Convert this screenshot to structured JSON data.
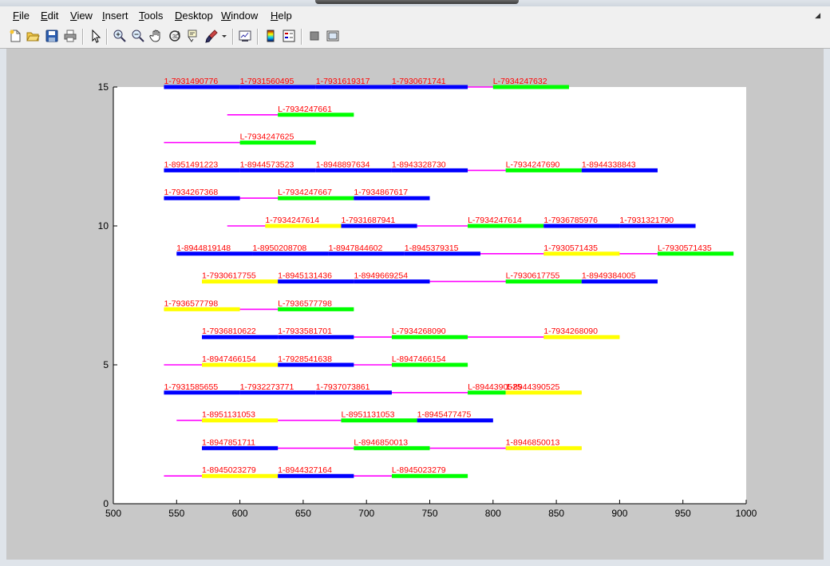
{
  "menu": [
    {
      "pre": "",
      "u": "F",
      "post": "ile"
    },
    {
      "pre": "",
      "u": "E",
      "post": "dit"
    },
    {
      "pre": "",
      "u": "V",
      "post": "iew"
    },
    {
      "pre": "",
      "u": "I",
      "post": "nsert"
    },
    {
      "pre": "",
      "u": "T",
      "post": "ools"
    },
    {
      "pre": "",
      "u": "D",
      "post": "esktop"
    },
    {
      "pre": "",
      "u": "W",
      "post": "indow"
    },
    {
      "pre": "",
      "u": "H",
      "post": "elp"
    }
  ],
  "toolbar_icons": [
    "new-figure-icon",
    "open-file-icon",
    "save-icon",
    "print-icon",
    "select-arrow-icon",
    "zoom-in-icon",
    "zoom-out-icon",
    "pan-hand-icon",
    "rotate-3d-icon",
    "data-cursor-icon",
    "brush-icon",
    "brush-dropdown-icon",
    "link-plot-icon",
    "colorbar-icon",
    "legend-icon",
    "hide-plot-tools-icon",
    "show-plot-tools-icon"
  ],
  "colors": {
    "blue": "#0000ff",
    "green": "#00ff00",
    "yellow": "#ffff00",
    "magenta": "#ff00ff",
    "label": "#ff0000"
  },
  "chart_data": {
    "type": "line",
    "xlim": [
      500,
      1000
    ],
    "ylim": [
      0,
      15
    ],
    "xticks": [
      500,
      550,
      600,
      650,
      700,
      750,
      800,
      850,
      900,
      950,
      1000
    ],
    "yticks": [
      0,
      5,
      10,
      15
    ],
    "rows": [
      {
        "y": 15,
        "line": [
          540,
          860
        ],
        "segments": [
          {
            "x": [
              540,
              600
            ],
            "color": "blue",
            "label": "1-7931490776"
          },
          {
            "x": [
              600,
              660
            ],
            "color": "blue",
            "label": "1-7931560495"
          },
          {
            "x": [
              660,
              720
            ],
            "color": "blue",
            "label": "1-7931619317"
          },
          {
            "x": [
              720,
              780
            ],
            "color": "blue",
            "label": "1-7930671741"
          },
          {
            "x": [
              800,
              860
            ],
            "color": "green",
            "label": "L-7934247632"
          }
        ]
      },
      {
        "y": 14,
        "line": [
          590,
          690
        ],
        "segments": [
          {
            "x": [
              630,
              690
            ],
            "color": "green",
            "label": "L-7934247661"
          }
        ]
      },
      {
        "y": 13,
        "line": [
          540,
          660
        ],
        "segments": [
          {
            "x": [
              600,
              660
            ],
            "color": "green",
            "label": "L-7934247625"
          }
        ]
      },
      {
        "y": 12,
        "line": [
          540,
          930
        ],
        "segments": [
          {
            "x": [
              540,
              600
            ],
            "color": "blue",
            "label": "1-8951491223"
          },
          {
            "x": [
              600,
              660
            ],
            "color": "blue",
            "label": "1-8944573523"
          },
          {
            "x": [
              660,
              720
            ],
            "color": "blue",
            "label": "1-8948897634"
          },
          {
            "x": [
              720,
              780
            ],
            "color": "blue",
            "label": "1-8943328730"
          },
          {
            "x": [
              810,
              870
            ],
            "color": "green",
            "label": "L-7934247690"
          },
          {
            "x": [
              870,
              930
            ],
            "color": "blue",
            "label": "1-8944338843"
          }
        ]
      },
      {
        "y": 11,
        "line": [
          540,
          750
        ],
        "segments": [
          {
            "x": [
              540,
              600
            ],
            "color": "blue",
            "label": "1-7934267368"
          },
          {
            "x": [
              630,
              690
            ],
            "color": "green",
            "label": "L-7934247667"
          },
          {
            "x": [
              690,
              750
            ],
            "color": "blue",
            "label": "1-7934867617"
          }
        ]
      },
      {
        "y": 10,
        "line": [
          590,
          960
        ],
        "segments": [
          {
            "x": [
              620,
              680
            ],
            "color": "yellow",
            "label": "1-7934247614"
          },
          {
            "x": [
              680,
              740
            ],
            "color": "blue",
            "label": "1-7931687941"
          },
          {
            "x": [
              780,
              840
            ],
            "color": "green",
            "label": "L-7934247614"
          },
          {
            "x": [
              840,
              900
            ],
            "color": "blue",
            "label": "1-7936785976"
          },
          {
            "x": [
              900,
              960
            ],
            "color": "blue",
            "label": "1-7931321790"
          }
        ]
      },
      {
        "y": 9,
        "line": [
          550,
          990
        ],
        "segments": [
          {
            "x": [
              550,
              610
            ],
            "color": "blue",
            "label": "1-8944819148"
          },
          {
            "x": [
              610,
              670
            ],
            "color": "blue",
            "label": "1-8950208708"
          },
          {
            "x": [
              670,
              730
            ],
            "color": "blue",
            "label": "1-8947844602"
          },
          {
            "x": [
              730,
              790
            ],
            "color": "blue",
            "label": "1-8945379315"
          },
          {
            "x": [
              840,
              900
            ],
            "color": "yellow",
            "label": "1-7930571435"
          },
          {
            "x": [
              930,
              990
            ],
            "color": "green",
            "label": "L-7930571435"
          }
        ]
      },
      {
        "y": 8,
        "line": [
          570,
          930
        ],
        "segments": [
          {
            "x": [
              570,
              630
            ],
            "color": "yellow",
            "label": "1-7930617755"
          },
          {
            "x": [
              630,
              690
            ],
            "color": "blue",
            "label": "1-8945131436"
          },
          {
            "x": [
              690,
              750
            ],
            "color": "blue",
            "label": "1-8949669254"
          },
          {
            "x": [
              810,
              870
            ],
            "color": "green",
            "label": "L-7930617755"
          },
          {
            "x": [
              870,
              930
            ],
            "color": "blue",
            "label": "1-8949384005"
          }
        ]
      },
      {
        "y": 7,
        "line": [
          540,
          690
        ],
        "segments": [
          {
            "x": [
              540,
              600
            ],
            "color": "yellow",
            "label": "1-7936577798"
          },
          {
            "x": [
              630,
              690
            ],
            "color": "green",
            "label": "L-7936577798"
          }
        ]
      },
      {
        "y": 6,
        "line": [
          570,
          900
        ],
        "segments": [
          {
            "x": [
              570,
              630
            ],
            "color": "blue",
            "label": "1-7936810622"
          },
          {
            "x": [
              630,
              690
            ],
            "color": "blue",
            "label": "1-7933581701"
          },
          {
            "x": [
              720,
              780
            ],
            "color": "green",
            "label": "L-7934268090"
          },
          {
            "x": [
              840,
              900
            ],
            "color": "yellow",
            "label": "1-7934268090"
          }
        ]
      },
      {
        "y": 5,
        "line": [
          540,
          780
        ],
        "segments": [
          {
            "x": [
              570,
              630
            ],
            "color": "yellow",
            "label": "1-8947466154"
          },
          {
            "x": [
              630,
              690
            ],
            "color": "blue",
            "label": "1-7928541638"
          },
          {
            "x": [
              720,
              780
            ],
            "color": "green",
            "label": "L-8947466154"
          }
        ]
      },
      {
        "y": 4,
        "line": [
          540,
          870
        ],
        "segments": [
          {
            "x": [
              540,
              600
            ],
            "color": "blue",
            "label": "1-7931585655"
          },
          {
            "x": [
              600,
              660
            ],
            "color": "blue",
            "label": "1-7932273771"
          },
          {
            "x": [
              660,
              720
            ],
            "color": "blue",
            "label": "1-7937073861"
          },
          {
            "x": [
              780,
              810
            ],
            "color": "green",
            "label": "L-8944390525"
          },
          {
            "x": [
              810,
              870
            ],
            "color": "yellow",
            "label": "1-8944390525"
          }
        ]
      },
      {
        "y": 3,
        "line": [
          550,
          800
        ],
        "segments": [
          {
            "x": [
              570,
              630
            ],
            "color": "yellow",
            "label": "1-8951131053"
          },
          {
            "x": [
              680,
              740
            ],
            "color": "green",
            "label": "L-8951131053"
          },
          {
            "x": [
              740,
              800
            ],
            "color": "blue",
            "label": "1-8945477475"
          }
        ]
      },
      {
        "y": 2,
        "line": [
          570,
          870
        ],
        "segments": [
          {
            "x": [
              570,
              630
            ],
            "color": "blue",
            "label": "1-8947851711"
          },
          {
            "x": [
              690,
              750
            ],
            "color": "green",
            "label": "L-8946850013"
          },
          {
            "x": [
              810,
              870
            ],
            "color": "yellow",
            "label": "1-8946850013"
          }
        ]
      },
      {
        "y": 1,
        "line": [
          540,
          780
        ],
        "segments": [
          {
            "x": [
              570,
              630
            ],
            "color": "yellow",
            "label": "1-8945023279"
          },
          {
            "x": [
              630,
              690
            ],
            "color": "blue",
            "label": "1-8944327164"
          },
          {
            "x": [
              720,
              780
            ],
            "color": "green",
            "label": "L-8945023279"
          }
        ]
      }
    ]
  }
}
